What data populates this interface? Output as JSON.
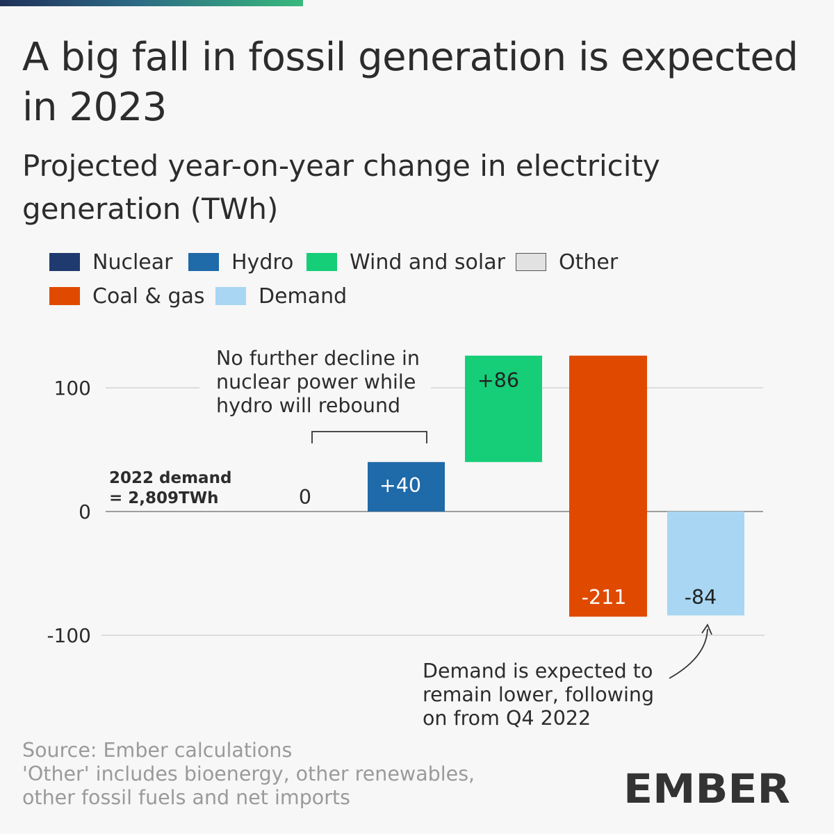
{
  "header": {
    "title": "A big fall in fossil generation is expected in 2023",
    "subtitle": "Projected year-on-year change in electricity generation (TWh)"
  },
  "legend": [
    {
      "label": "Nuclear",
      "color": "#1f3a6e",
      "icon": "nuclear-swatch"
    },
    {
      "label": "Hydro",
      "color": "#1f6aa8",
      "icon": "hydro-swatch"
    },
    {
      "label": "Wind and solar",
      "color": "#16cd78",
      "icon": "wind-solar-swatch"
    },
    {
      "label": "Other",
      "color": "#e2e2e2",
      "icon": "other-swatch"
    },
    {
      "label": "Coal & gas",
      "color": "#e04a00",
      "icon": "coal-gas-swatch"
    },
    {
      "label": "Demand",
      "color": "#a8d6f3",
      "icon": "demand-swatch"
    }
  ],
  "chart_data": {
    "type": "bar",
    "subtype": "waterfall",
    "title": "A big fall in fossil generation is expected in 2023",
    "subtitle": "Projected year-on-year change in electricity generation (TWh)",
    "xlabel": "",
    "ylabel": "",
    "ylim": [
      -100,
      100
    ],
    "yticks": [
      -100,
      0,
      100
    ],
    "ytick_labels": [
      "-100",
      "0",
      "100"
    ],
    "grid": true,
    "legend_position": "top",
    "series": [
      {
        "name": "Nuclear",
        "category": "Nuclear",
        "start": 0,
        "end": 0,
        "value": 0,
        "label": "0",
        "color": "#1f3a6e"
      },
      {
        "name": "Hydro",
        "category": "Hydro",
        "start": 0,
        "end": 40,
        "value": 40,
        "label": "+40",
        "color": "#1f6aa8"
      },
      {
        "name": "Wind and solar",
        "category": "Wind and solar",
        "start": 40,
        "end": 126,
        "value": 86,
        "label": "+86",
        "color": "#16cd78"
      },
      {
        "name": "Coal & gas",
        "category": "Coal & gas",
        "start": 126,
        "end": -85,
        "value": -211,
        "label": "-211",
        "color": "#e04a00"
      },
      {
        "name": "Demand",
        "category": "Demand",
        "start": 0,
        "end": -84,
        "value": -84,
        "label": "-84",
        "color": "#a8d6f3"
      }
    ]
  },
  "annotations": {
    "baseline": {
      "line1": "2022 demand",
      "line2": "= 2,809TWh"
    },
    "nuclear_hydro": {
      "line1": "No further decline in",
      "line2": "nuclear power while",
      "line3": "hydro will rebound"
    },
    "demand": {
      "line1": "Demand is expected to",
      "line2": "remain lower, following",
      "line3": "on from Q4 2022"
    }
  },
  "footer": {
    "source": "Source: Ember calculations",
    "note_line1": "'Other' includes bioenergy, other renewables,",
    "note_line2": "other fossil fuels and net imports",
    "brand": "EMBER",
    "brand_accent_color": "#2ec27e",
    "brand_text_color": "#333333"
  }
}
